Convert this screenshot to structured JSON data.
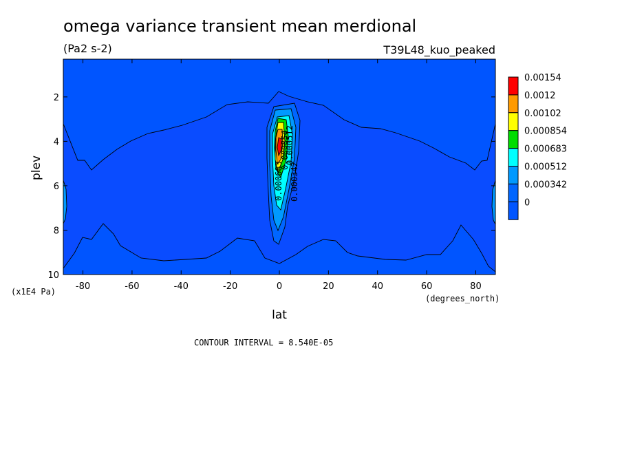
{
  "chart_data": {
    "type": "contour",
    "title": "omega variance transient mean merdional",
    "units": "(Pa2 s-2)",
    "run_label": "T39L48_kuo_peaked",
    "xlabel": "lat",
    "xunits": "(degrees_north)",
    "ylabel": "plev",
    "yunits": "(x1E4 Pa)",
    "xlim": [
      -88,
      88
    ],
    "ylim": [
      10,
      0.3
    ],
    "x_ticks": [
      -80,
      -60,
      -40,
      -20,
      0,
      20,
      40,
      60,
      80
    ],
    "x_tick_labels": [
      "-80",
      "-60",
      "-40",
      "-20",
      "0",
      "20",
      "40",
      "60",
      "80"
    ],
    "y_ticks": [
      2,
      4,
      6,
      8,
      10
    ],
    "y_tick_labels": [
      "2",
      "4",
      "6",
      "8",
      "10"
    ],
    "contour_interval_text": "CONTOUR INTERVAL = 8.540E-05",
    "colorbar": {
      "levels": [
        "0.00154",
        "0.0012",
        "0.00102",
        "0.000854",
        "0.000683",
        "0.000512",
        "0.000342",
        "0"
      ],
      "colors": [
        "#ff0000",
        "#ff9a00",
        "#ffff00",
        "#00dd00",
        "#00ffff",
        "#0099ff",
        "#0066ff"
      ]
    },
    "contour_labels": [
      "0.000683",
      "0.000854",
      "0.000512",
      "0.000342"
    ],
    "background_color": "#0055ff"
  }
}
